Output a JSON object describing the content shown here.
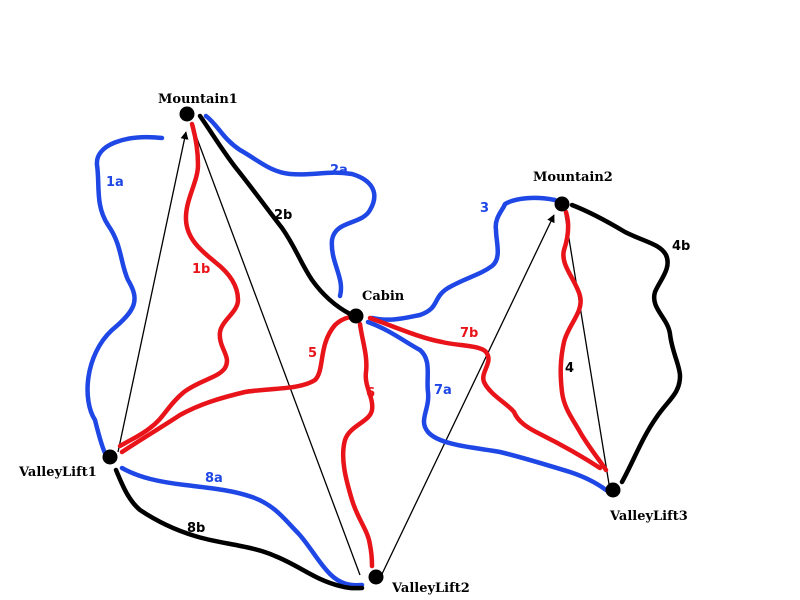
{
  "colors": {
    "easy": "#1f47e6",
    "intermediate": "#e8141a",
    "expert": "#000000",
    "lift": "#000000"
  },
  "nodes": {
    "mountain1": "Mountain1",
    "mountain2": "Mountain2",
    "cabin": "Cabin",
    "valleylift1": "ValleyLift1",
    "valleylift2": "ValleyLift2",
    "valleylift3": "ValleyLift3"
  },
  "trails": {
    "t1a": "1a",
    "t1b": "1b",
    "t2a": "2a",
    "t2b": "2b",
    "t3": "3",
    "t4": "4",
    "t4b": "4b",
    "t5": "5",
    "t6": "6",
    "t7a": "7a",
    "t7b": "7b",
    "t8a": "8a",
    "t8b": "8b"
  }
}
